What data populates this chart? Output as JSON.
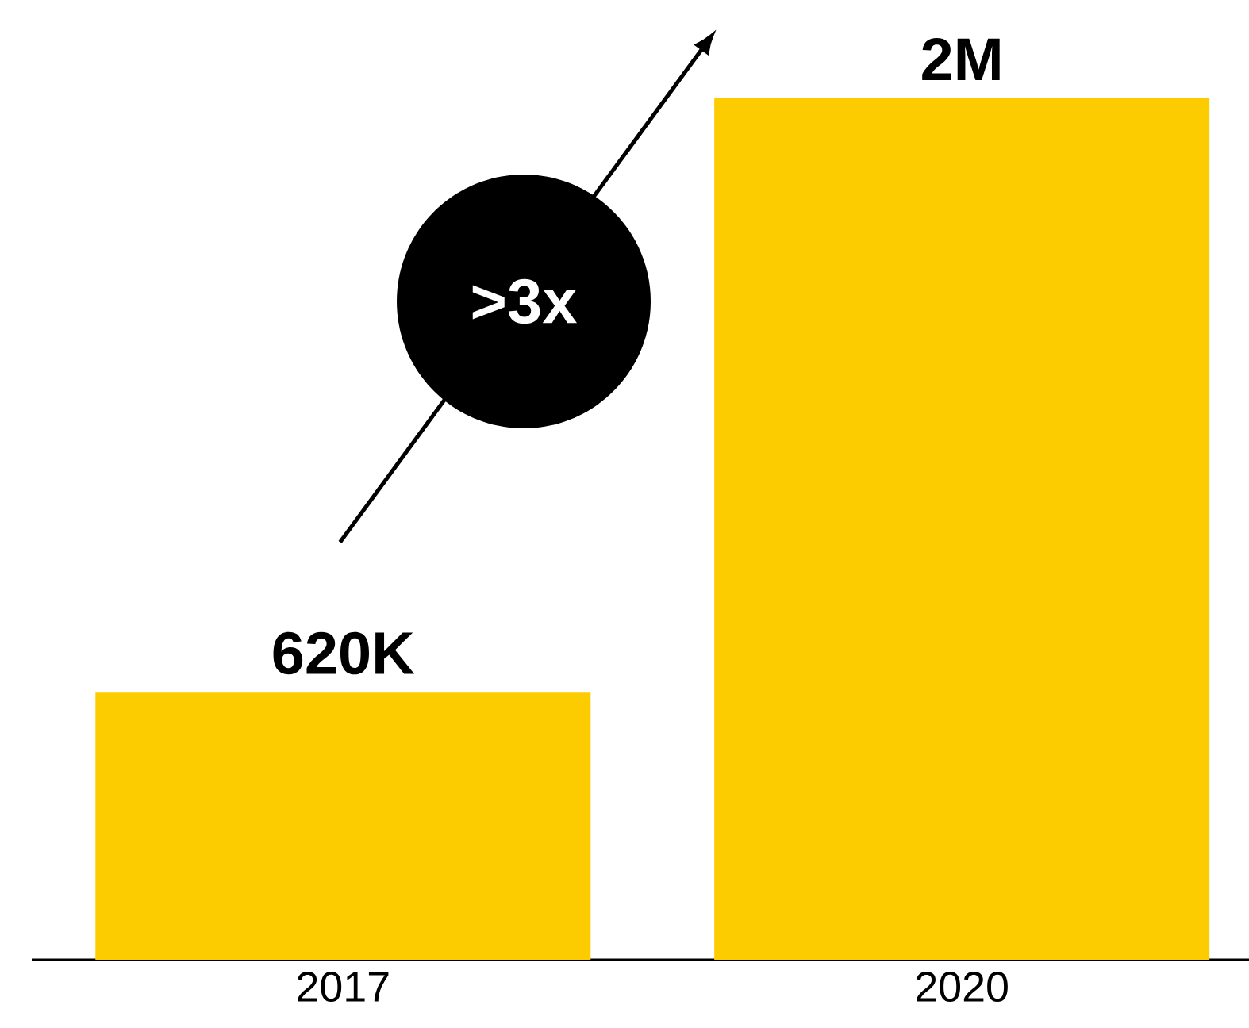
{
  "chart_data": {
    "type": "bar",
    "categories": [
      "2017",
      "2020"
    ],
    "values": [
      620000,
      2000000
    ],
    "color": "#fccc00",
    "value_labels": [
      "620K",
      "2M"
    ],
    "annotations": [
      ">3x"
    ]
  }
}
